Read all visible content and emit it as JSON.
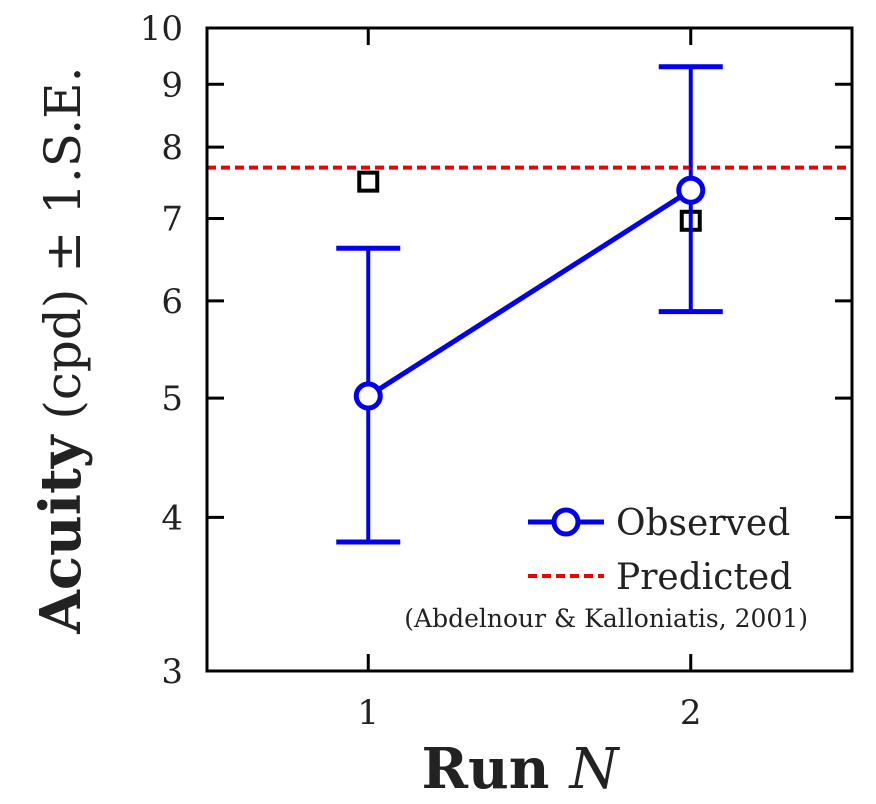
{
  "chart_data": {
    "type": "line",
    "x_axis": {
      "label": "Run",
      "label_italic_part": "N",
      "range": [
        0.5,
        2.5
      ],
      "ticks": [
        1,
        2
      ]
    },
    "y_axis": {
      "label": "Acuity (cpd) ± 1.S.E.",
      "label_bold_part": "Acuity",
      "label_rest": "(cpd) ± 1.S.E.",
      "scale": "log",
      "range": [
        3,
        10
      ],
      "ticks": [
        3,
        4,
        5,
        6,
        7,
        8,
        9,
        10
      ]
    },
    "series": [
      {
        "name": "Observed",
        "color": "#0000ee",
        "marker": "circle",
        "points": [
          {
            "x": 1,
            "y": 5.02,
            "y_low": 3.82,
            "y_high": 6.62
          },
          {
            "x": 2,
            "y": 7.38,
            "y_low": 5.88,
            "y_high": 9.3
          }
        ]
      },
      {
        "name": "Predicted",
        "color": "#ee0000",
        "style": "dotted",
        "horizontal_line_y": 7.7
      },
      {
        "color": "#000000",
        "marker": "square",
        "points": [
          {
            "x": 1,
            "y": 7.5
          },
          {
            "x": 2,
            "y": 6.97
          }
        ]
      }
    ],
    "legend": {
      "position": "bottom-right",
      "note": "(Abdelnour & Kalloniatis, 2001)"
    },
    "grid": false
  }
}
